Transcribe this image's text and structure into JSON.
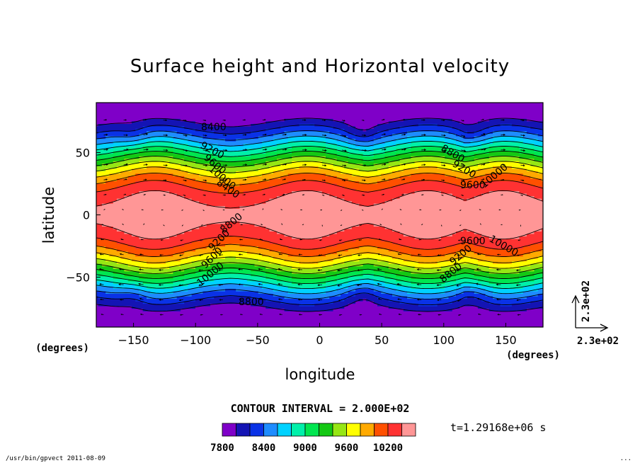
{
  "chart_data": {
    "type": "heatmap",
    "title": "Surface height and Horizontal velocity",
    "xlabel": "longitude",
    "ylabel": "latitude",
    "x_unit_label": "(degrees)",
    "y_unit_label": "(degrees)",
    "xlim": [
      -180,
      180
    ],
    "ylim": [
      -90,
      90
    ],
    "x_ticks": [
      -150,
      -100,
      -50,
      0,
      50,
      100,
      150
    ],
    "y_ticks": [
      -50,
      0,
      50
    ],
    "contour_interval_text": "CONTOUR INTERVAL = 2.000E+02",
    "contour_levels": [
      7800,
      8000,
      8200,
      8400,
      8600,
      8800,
      9000,
      9200,
      9400,
      9600,
      9800,
      10000,
      10200,
      10400
    ],
    "colorbar_ticks": [
      7800,
      8400,
      9000,
      9600,
      10200
    ],
    "colorbar_colors": [
      "#7f00c8",
      "#1414b4",
      "#0a32e6",
      "#1e8cff",
      "#00d2ff",
      "#00f0aa",
      "#00e650",
      "#14c814",
      "#96e614",
      "#ffff00",
      "#ffaa00",
      "#ff5000",
      "#ff3232",
      "#ff9696"
    ],
    "contour_labels": [
      "8400",
      "8800",
      "9200",
      "9600",
      "10000",
      "8400",
      "8800",
      "9200",
      "9600",
      "10000",
      "8800",
      "9200",
      "9600",
      "10000",
      "8800",
      "9200",
      "9600",
      "10000"
    ],
    "vector_reference_x": "2.3e+02",
    "vector_reference_y": "2.3e+02",
    "time_label": "t=1.29168e+06 s",
    "footer_left": "/usr/bin/gpvect  2011-08-09",
    "footer_right": "..."
  }
}
